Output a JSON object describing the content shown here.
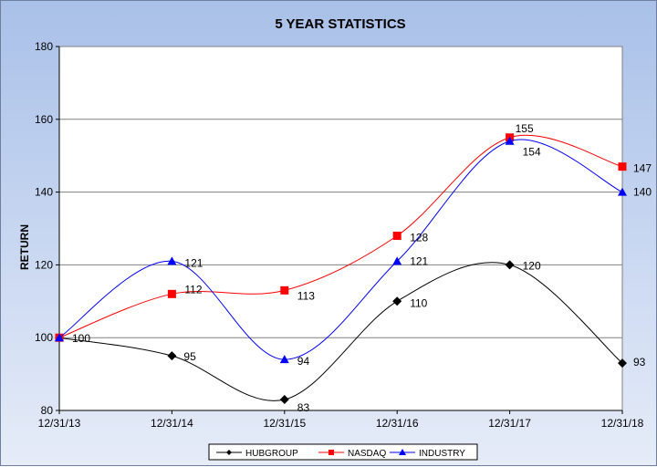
{
  "chart_data": {
    "type": "line",
    "title": "5 YEAR STATISTICS",
    "xlabel": "",
    "ylabel": "RETURN",
    "categories": [
      "12/31/13",
      "12/31/14",
      "12/31/15",
      "12/31/16",
      "12/31/17",
      "12/31/18"
    ],
    "ylim": [
      80,
      180
    ],
    "yticks": [
      "80",
      "100",
      "120",
      "140",
      "160",
      "180"
    ],
    "grid": true,
    "legend": "bottom",
    "series": [
      {
        "name": "HUBGROUP",
        "values": [
          100,
          95,
          83,
          110,
          120,
          93
        ],
        "labels": [
          "100",
          "95",
          "83",
          "110",
          "120",
          "93"
        ],
        "color": "#000000",
        "marker": "diamond"
      },
      {
        "name": "NASDAQ",
        "values": [
          100,
          112,
          113,
          128,
          155,
          147
        ],
        "labels": [
          "",
          "112",
          "113",
          "128",
          "155",
          "147"
        ],
        "color": "#ff0000",
        "marker": "square"
      },
      {
        "name": "INDUSTRY",
        "values": [
          100,
          121,
          94,
          121,
          154,
          140
        ],
        "labels": [
          "",
          "121",
          "94",
          "121",
          "154",
          "140"
        ],
        "color": "#0000ff",
        "marker": "triangle"
      }
    ]
  }
}
